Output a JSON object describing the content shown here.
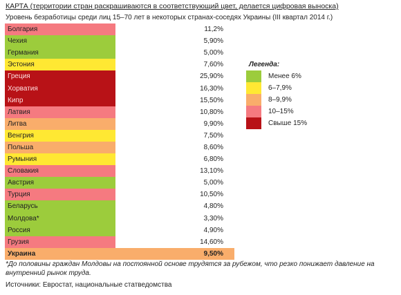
{
  "header": {
    "title": "КАРТА (территории стран раскрашиваются в соответствующий цвет, делается цифровая выноска)",
    "subtitle": "Уровень безработицы среди лиц 15–70 лет в некоторых странах-соседях Украины (III квартал 2014 г.)"
  },
  "legend": {
    "title": "Легенда:",
    "items": [
      {
        "label": "Менее 6%",
        "color": "#9ccc3c"
      },
      {
        "label": "6–7,9%",
        "color": "#ffe833"
      },
      {
        "label": "8–9,9%",
        "color": "#f9ad6b"
      },
      {
        "label": "10–15%",
        "color": "#f57a80"
      },
      {
        "label": "Свыше 15%",
        "color": "#b81217"
      }
    ]
  },
  "chart_data": {
    "type": "table",
    "columns": [
      "country",
      "unemployment_rate"
    ],
    "rows": [
      {
        "country": "Болгария",
        "value": "11,2%",
        "num": 11.2,
        "bin": 3
      },
      {
        "country": "Чехия",
        "value": "5,90%",
        "num": 5.9,
        "bin": 0
      },
      {
        "country": "Германия",
        "value": "5,00%",
        "num": 5.0,
        "bin": 0
      },
      {
        "country": "Эстония",
        "value": "7,60%",
        "num": 7.6,
        "bin": 1
      },
      {
        "country": "Греция",
        "value": "25,90%",
        "num": 25.9,
        "bin": 4
      },
      {
        "country": "Хорватия",
        "value": "16,30%",
        "num": 16.3,
        "bin": 4
      },
      {
        "country": "Кипр",
        "value": "15,50%",
        "num": 15.5,
        "bin": 4
      },
      {
        "country": "Латвия",
        "value": "10,80%",
        "num": 10.8,
        "bin": 3
      },
      {
        "country": "Литва",
        "value": "9,90%",
        "num": 9.9,
        "bin": 2
      },
      {
        "country": "Венгрия",
        "value": "7,50%",
        "num": 7.5,
        "bin": 1
      },
      {
        "country": "Польша",
        "value": "8,60%",
        "num": 8.6,
        "bin": 2
      },
      {
        "country": "Румыния",
        "value": "6,80%",
        "num": 6.8,
        "bin": 1
      },
      {
        "country": "Словакия",
        "value": "13,10%",
        "num": 13.1,
        "bin": 3
      },
      {
        "country": "Австрия",
        "value": "5,00%",
        "num": 5.0,
        "bin": 0
      },
      {
        "country": "Турция",
        "value": "10,50%",
        "num": 10.5,
        "bin": 3
      },
      {
        "country": "Беларусь",
        "value": "4,80%",
        "num": 4.8,
        "bin": 0
      },
      {
        "country": "Молдова*",
        "value": "3,30%",
        "num": 3.3,
        "bin": 0
      },
      {
        "country": "Россия",
        "value": "4,90%",
        "num": 4.9,
        "bin": 0
      },
      {
        "country": "Грузия",
        "value": "14,60%",
        "num": 14.6,
        "bin": 3
      },
      {
        "country": "Украина",
        "value": "9,50%",
        "num": 9.5,
        "bin": 2,
        "bold": true
      }
    ]
  },
  "footnote": "*До половины граждан Молдовы на постоянной основе трудятся за рубежом, что резко понижает давление на внутренний рынок труда.",
  "source": "Источники: Евростат, национальные статведомства"
}
